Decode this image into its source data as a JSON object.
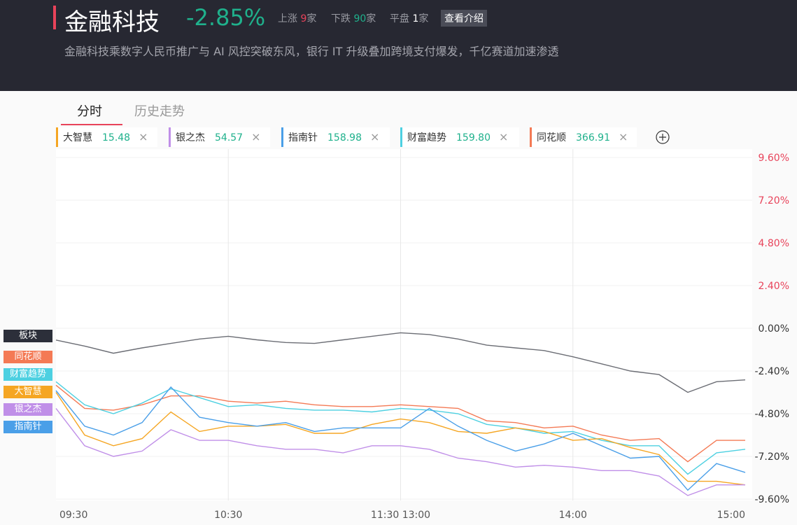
{
  "header": {
    "title": "金融科技",
    "change": "-2.85%",
    "up_label": "上涨",
    "up_count": "9",
    "down_label": "下跌",
    "down_count": "90",
    "flat_label": "平盘",
    "flat_count": "1",
    "unit": "家",
    "intro_button": "查看介绍",
    "subtitle": "金融科技乘数字人民币推广与 AI 风控突破东风，银行 IT 升级叠加跨境支付爆发，千亿赛道加速渗透"
  },
  "tabs": [
    "分时",
    "历史走势"
  ],
  "stock_tabs": [
    {
      "name": "大智慧",
      "price": "15.48",
      "color": "#f5a623"
    },
    {
      "name": "银之杰",
      "price": "54.57",
      "color": "#c08fe8"
    },
    {
      "name": "指南针",
      "price": "158.98",
      "color": "#4a9fe8"
    },
    {
      "name": "财富趋势",
      "price": "159.80",
      "color": "#4dd0e1"
    },
    {
      "name": "同花顺",
      "price": "366.91",
      "color": "#f47a55"
    }
  ],
  "close_icon": "×",
  "chart_data": {
    "type": "line",
    "x": [
      0,
      10,
      20,
      30,
      40,
      50,
      60,
      70,
      80,
      90,
      100,
      110,
      120,
      130,
      140,
      150,
      160,
      170,
      180,
      190,
      200,
      210,
      220,
      230,
      240
    ],
    "xlim": [
      0,
      240
    ],
    "xticks": [
      {
        "value": 0,
        "label": "09:30"
      },
      {
        "value": 60,
        "label": "10:30"
      },
      {
        "value": 120,
        "label": "11:30 13:00"
      },
      {
        "value": 180,
        "label": "14:00"
      },
      {
        "value": 240,
        "label": "15:00"
      }
    ],
    "ylim": [
      -9.6,
      9.6
    ],
    "yticks": [
      {
        "value": 9.6,
        "label": "9.60%"
      },
      {
        "value": 7.2,
        "label": "7.20%"
      },
      {
        "value": 4.8,
        "label": "4.80%"
      },
      {
        "value": 2.4,
        "label": "2.40%"
      },
      {
        "value": 0,
        "label": "0.00%"
      },
      {
        "value": -2.4,
        "label": "-2.40%"
      },
      {
        "value": -4.8,
        "label": "-4.80%"
      },
      {
        "value": -7.2,
        "label": "-7.20%"
      },
      {
        "value": -9.6,
        "label": "-9.60%"
      }
    ],
    "grid": true,
    "series": [
      {
        "name": "板块",
        "color": "#6b6d74",
        "label_color": "#2c2f3a",
        "values": [
          -0.66,
          -1.0,
          -1.4,
          -1.1,
          -0.85,
          -0.6,
          -0.45,
          -0.65,
          -0.8,
          -0.85,
          -0.65,
          -0.45,
          -0.25,
          -0.35,
          -0.6,
          -0.95,
          -1.1,
          -1.25,
          -1.6,
          -2.0,
          -2.4,
          -2.6,
          -3.6,
          -3.0,
          -2.9
        ]
      },
      {
        "name": "同花顺",
        "color": "#f47a55",
        "label_color": "#f47a55",
        "values": [
          -3.2,
          -4.5,
          -4.6,
          -4.3,
          -3.8,
          -3.8,
          -4.1,
          -4.2,
          -4.1,
          -4.3,
          -4.4,
          -4.4,
          -4.3,
          -4.4,
          -4.5,
          -5.2,
          -5.3,
          -5.6,
          -5.5,
          -6.0,
          -6.3,
          -6.2,
          -7.5,
          -6.3,
          -6.3
        ]
      },
      {
        "name": "财富趋势",
        "color": "#4dd0e1",
        "label_color": "#4dd0e1",
        "values": [
          -3.0,
          -4.3,
          -4.8,
          -4.2,
          -3.4,
          -3.9,
          -4.4,
          -4.3,
          -4.5,
          -4.6,
          -4.6,
          -4.7,
          -4.5,
          -4.6,
          -4.8,
          -5.4,
          -5.6,
          -5.9,
          -5.8,
          -6.3,
          -6.6,
          -6.6,
          -8.2,
          -7.0,
          -6.8
        ]
      },
      {
        "name": "大智慧",
        "color": "#f5a623",
        "label_color": "#f5a623",
        "values": [
          -3.6,
          -6.0,
          -6.6,
          -6.2,
          -4.7,
          -5.8,
          -5.5,
          -5.5,
          -5.4,
          -5.9,
          -5.9,
          -5.4,
          -5.1,
          -5.3,
          -5.8,
          -5.9,
          -5.6,
          -5.8,
          -6.3,
          -6.2,
          -6.7,
          -7.1,
          -8.6,
          -8.6,
          -8.8
        ]
      },
      {
        "name": "银之杰",
        "color": "#c08fe8",
        "label_color": "#c08fe8",
        "values": [
          -4.5,
          -6.6,
          -7.2,
          -6.9,
          -5.7,
          -6.3,
          -6.3,
          -6.6,
          -6.8,
          -6.8,
          -7.0,
          -6.6,
          -6.6,
          -6.8,
          -7.3,
          -7.5,
          -7.8,
          -7.7,
          -7.8,
          -8.0,
          -8.0,
          -8.3,
          -9.4,
          -8.8,
          -8.8
        ]
      },
      {
        "name": "指南针",
        "color": "#4a9fe8",
        "label_color": "#4a9fe8",
        "values": [
          -3.5,
          -5.5,
          -6.0,
          -5.3,
          -3.3,
          -5.0,
          -5.3,
          -5.5,
          -5.3,
          -5.8,
          -5.6,
          -5.6,
          -5.6,
          -4.5,
          -5.5,
          -6.3,
          -6.9,
          -6.5,
          -5.9,
          -6.6,
          -7.3,
          -7.2,
          -9.1,
          -7.6,
          -8.1
        ]
      }
    ]
  }
}
